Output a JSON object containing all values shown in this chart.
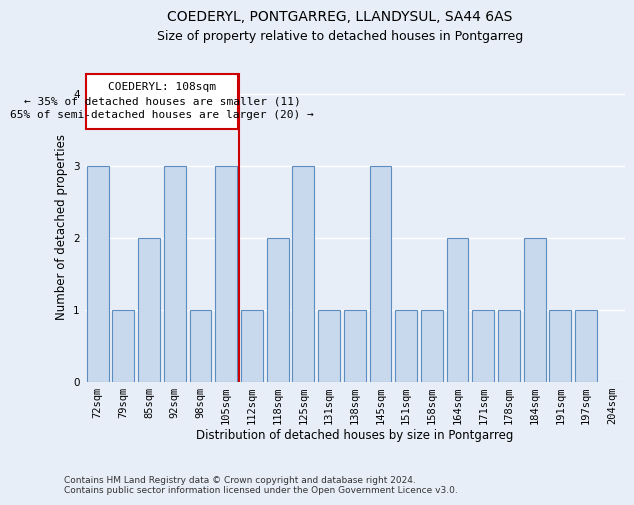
{
  "title": "COEDERYL, PONTGARREG, LLANDYSUL, SA44 6AS",
  "subtitle": "Size of property relative to detached houses in Pontgarreg",
  "xlabel": "Distribution of detached houses by size in Pontgarreg",
  "ylabel": "Number of detached properties",
  "categories": [
    "72sqm",
    "79sqm",
    "85sqm",
    "92sqm",
    "98sqm",
    "105sqm",
    "112sqm",
    "118sqm",
    "125sqm",
    "131sqm",
    "138sqm",
    "145sqm",
    "151sqm",
    "158sqm",
    "164sqm",
    "171sqm",
    "178sqm",
    "184sqm",
    "191sqm",
    "197sqm",
    "204sqm"
  ],
  "values": [
    3,
    1,
    2,
    3,
    1,
    3,
    1,
    2,
    3,
    1,
    1,
    3,
    1,
    1,
    2,
    1,
    1,
    2,
    1,
    1,
    0
  ],
  "bar_color": "#c9d9ed",
  "bar_edge_color": "#5b8dc0",
  "vline_x_index": 6,
  "vline_color": "#cc0000",
  "annotation_box_text_line1": "COEDERYL: 108sqm",
  "annotation_box_text_line2": "← 35% of detached houses are smaller (11)",
  "annotation_box_text_line3": "65% of semi-detached houses are larger (20) →",
  "annotation_box_color": "#cc0000",
  "annotation_box_fill": "#ffffff",
  "ylim": [
    0,
    4.3
  ],
  "yticks": [
    0,
    1,
    2,
    3,
    4
  ],
  "footer": "Contains HM Land Registry data © Crown copyright and database right 2024.\nContains public sector information licensed under the Open Government Licence v3.0.",
  "bg_color": "#e8eef8",
  "plot_bg_color": "#e8eef8",
  "grid_color": "#ffffff",
  "title_fontsize": 10,
  "subtitle_fontsize": 9,
  "xlabel_fontsize": 8.5,
  "ylabel_fontsize": 8.5,
  "tick_fontsize": 7.5,
  "footer_fontsize": 6.5,
  "ann_fontsize": 8
}
